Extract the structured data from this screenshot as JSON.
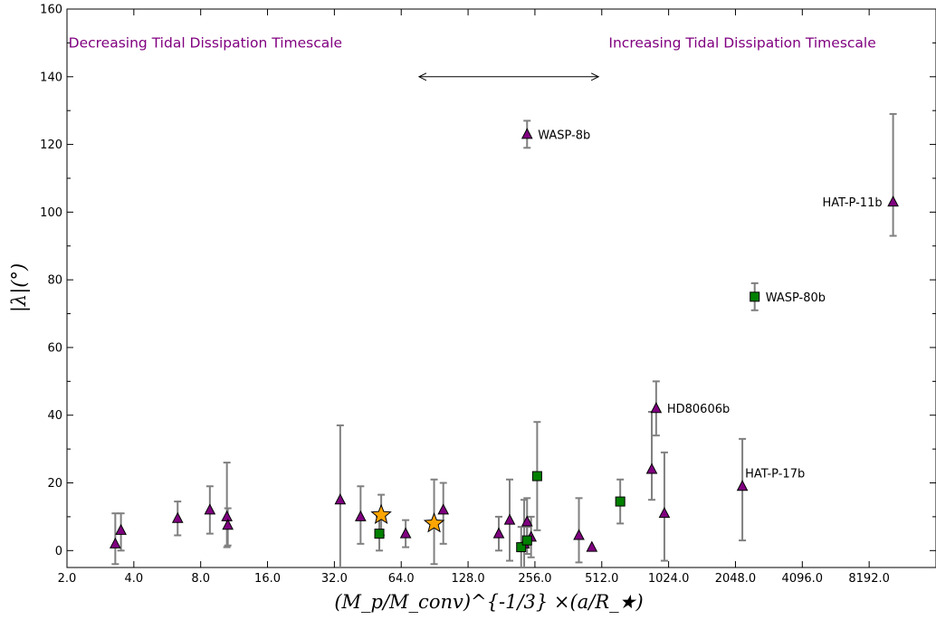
{
  "chart_data": {
    "type": "scatter",
    "xscale": "log2",
    "xlim": [
      2,
      16384
    ],
    "ylim": [
      -5,
      160
    ],
    "xticks": [
      {
        "value": 2,
        "label": "2.0"
      },
      {
        "value": 4,
        "label": "4.0"
      },
      {
        "value": 8,
        "label": "8.0"
      },
      {
        "value": 16,
        "label": "16.0"
      },
      {
        "value": 32,
        "label": "32.0"
      },
      {
        "value": 64,
        "label": "64.0"
      },
      {
        "value": 128,
        "label": "128.0"
      },
      {
        "value": 256,
        "label": "256.0"
      },
      {
        "value": 512,
        "label": "512.0"
      },
      {
        "value": 1024,
        "label": "1024.0"
      },
      {
        "value": 2048,
        "label": "2048.0"
      },
      {
        "value": 4096,
        "label": "4096.0"
      },
      {
        "value": 8192,
        "label": "8192.0"
      }
    ],
    "yticks": [
      {
        "value": 0,
        "label": "0"
      },
      {
        "value": 20,
        "label": "20"
      },
      {
        "value": 40,
        "label": "40"
      },
      {
        "value": 60,
        "label": "60"
      },
      {
        "value": 80,
        "label": "80"
      },
      {
        "value": 100,
        "label": "100"
      },
      {
        "value": 120,
        "label": "120"
      },
      {
        "value": 140,
        "label": "140"
      },
      {
        "value": 160,
        "label": "160"
      }
    ],
    "xlabel": "(M_p/M_conv)^{-1/3} ×(a/R_★)",
    "ylabel": "|λ|(°)",
    "annotations": [
      {
        "text": "Decreasing Tidal Dissipation Timescale",
        "x": 8.4,
        "y": 150,
        "anchor": "middle"
      },
      {
        "text": "Increasing Tidal Dissipation Timescale",
        "x": 2200,
        "y": 150,
        "anchor": "middle"
      }
    ],
    "arrow": {
      "x1": 77,
      "x2": 495,
      "y": 140
    },
    "colors": {
      "triangle": "#800080",
      "square": "#008000",
      "star": "#FFA500",
      "errorbar": "#808080"
    },
    "series": [
      {
        "marker": "triangle",
        "points": [
          {
            "x": 3.3,
            "y": 2,
            "yerr_low": 6,
            "yerr_high": 9
          },
          {
            "x": 3.5,
            "y": 6,
            "yerr_low": 6,
            "yerr_high": 5
          },
          {
            "x": 6.3,
            "y": 9.5,
            "yerr_low": 5,
            "yerr_high": 5
          },
          {
            "x": 8.8,
            "y": 12,
            "yerr_low": 7,
            "yerr_high": 7
          },
          {
            "x": 10.5,
            "y": 10,
            "yerr_low": 9,
            "yerr_high": 16
          },
          {
            "x": 10.6,
            "y": 7.5,
            "yerr_low": 6,
            "yerr_high": 5
          },
          {
            "x": 34,
            "y": 15,
            "yerr_low": 20,
            "yerr_high": 22
          },
          {
            "x": 42,
            "y": 10,
            "yerr_low": 8,
            "yerr_high": 9
          },
          {
            "x": 67,
            "y": 5,
            "yerr_low": 4,
            "yerr_high": 4
          },
          {
            "x": 99,
            "y": 12,
            "yerr_low": 10,
            "yerr_high": 8
          },
          {
            "x": 176,
            "y": 5,
            "yerr_low": 5,
            "yerr_high": 5
          },
          {
            "x": 197,
            "y": 9,
            "yerr_low": 12,
            "yerr_high": 12
          },
          {
            "x": 229,
            "y": 2,
            "yerr_low": 7,
            "yerr_high": 13
          },
          {
            "x": 236,
            "y": 8.5,
            "yerr_low": 7,
            "yerr_high": 7
          },
          {
            "x": 236,
            "y": 123,
            "yerr_low": 4,
            "yerr_high": 4,
            "label": "WASP-8b",
            "label_pos": "right"
          },
          {
            "x": 246,
            "y": 4,
            "yerr_low": 6,
            "yerr_high": 6
          },
          {
            "x": 404,
            "y": 4.5,
            "yerr_low": 8,
            "yerr_high": 11
          },
          {
            "x": 462,
            "y": 1,
            "yerr_low": 0,
            "yerr_high": 0
          },
          {
            "x": 860,
            "y": 24,
            "yerr_low": 9,
            "yerr_high": 17
          },
          {
            "x": 900,
            "y": 42,
            "yerr_low": 8,
            "yerr_high": 8,
            "label": "HD80606b",
            "label_pos": "right"
          },
          {
            "x": 980,
            "y": 11,
            "yerr_low": 14,
            "yerr_high": 18
          },
          {
            "x": 2200,
            "y": 19,
            "yerr_low": 16,
            "yerr_high": 14,
            "label": "HAT-P-17b",
            "label_pos": "upper-right"
          },
          {
            "x": 10500,
            "y": 103,
            "yerr_low": 10,
            "yerr_high": 26,
            "label": "HAT-P-11b",
            "label_pos": "left"
          }
        ]
      },
      {
        "marker": "square",
        "points": [
          {
            "x": 51,
            "y": 5,
            "yerr_low": 5,
            "yerr_high": 5
          },
          {
            "x": 222,
            "y": 1,
            "yerr_low": 6,
            "yerr_high": 6
          },
          {
            "x": 236,
            "y": 3,
            "yerr_low": 4,
            "yerr_high": 4
          },
          {
            "x": 262,
            "y": 22,
            "yerr_low": 16,
            "yerr_high": 16
          },
          {
            "x": 620,
            "y": 14.5,
            "yerr_low": 6.5,
            "yerr_high": 6.5
          },
          {
            "x": 2500,
            "y": 75,
            "yerr_low": 4,
            "yerr_high": 4,
            "label": "WASP-80b",
            "label_pos": "right"
          }
        ]
      },
      {
        "marker": "star",
        "points": [
          {
            "x": 52,
            "y": 10.5,
            "yerr_low": 6,
            "yerr_high": 6
          },
          {
            "x": 90,
            "y": 8,
            "yerr_low": 12,
            "yerr_high": 13
          }
        ]
      }
    ]
  }
}
